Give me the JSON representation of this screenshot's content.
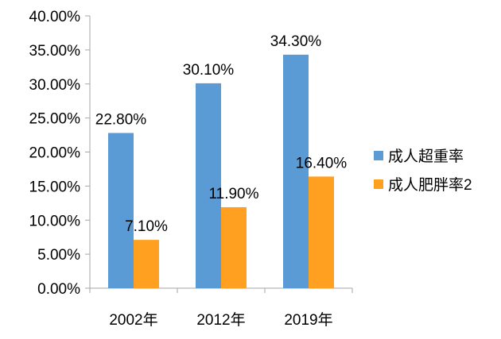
{
  "chart_data": {
    "type": "bar",
    "categories": [
      "2002年",
      "2012年",
      "2019年"
    ],
    "series": [
      {
        "name": "成人超重率",
        "values": [
          22.8,
          30.1,
          34.3
        ],
        "labels": [
          "22.80%",
          "30.10%",
          "34.30%"
        ],
        "color": "#5B9BD5"
      },
      {
        "name": "成人肥胖率2",
        "values": [
          7.1,
          11.9,
          16.4
        ],
        "labels": [
          "7.10%",
          "11.90%",
          "16.40%"
        ],
        "color": "#FFA020"
      }
    ],
    "ylim": [
      0,
      40
    ],
    "yticks": [
      0,
      5,
      10,
      15,
      20,
      25,
      30,
      35,
      40
    ],
    "ytick_labels": [
      "0.00%",
      "5.00%",
      "10.00%",
      "15.00%",
      "20.00%",
      "25.00%",
      "30.00%",
      "35.00%",
      "40.00%"
    ],
    "grid": false,
    "legend_position": "right",
    "axis_color": "#A6A6A6"
  }
}
